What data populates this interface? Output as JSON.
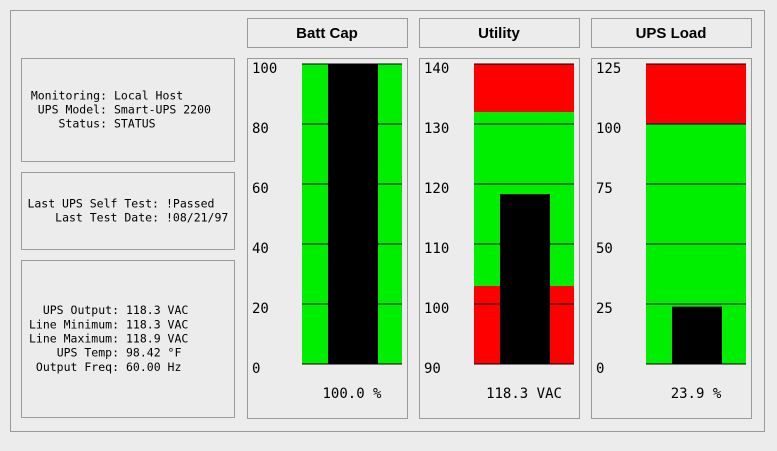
{
  "panels": [
    {
      "lines": [
        {
          "label": "Monitoring:",
          "value": "Local Host"
        },
        {
          "label": "UPS Model:",
          "value": "Smart-UPS 2200"
        },
        {
          "label": "Status:",
          "value": "STATUS"
        }
      ]
    },
    {
      "lines": [
        {
          "label": "Last UPS Self Test:",
          "value": "!Passed"
        },
        {
          "label": "Last Test Date:",
          "value": "!08/21/97"
        }
      ]
    },
    {
      "lines": [
        {
          "label": "UPS Output:",
          "value": "118.3 VAC"
        },
        {
          "label": "Line Minimum:",
          "value": "118.3 VAC"
        },
        {
          "label": "Line Maximum:",
          "value": "118.9 VAC"
        },
        {
          "label": "UPS Temp:",
          "value": "98.42 °F"
        },
        {
          "label": "Output Freq:",
          "value": "60.00 Hz"
        }
      ]
    }
  ],
  "chart_data": [
    {
      "type": "bar",
      "title": "Batt Cap",
      "values": [
        100.0
      ],
      "value_labels": [
        "100.0 %"
      ],
      "color": "#000000",
      "ylim": [
        0,
        100
      ],
      "yticks": [
        0,
        20,
        40,
        60,
        80,
        100
      ],
      "grid": true,
      "bands": [
        {
          "from": 0,
          "to": 100,
          "color": "#00ee00"
        }
      ]
    },
    {
      "type": "bar",
      "title": "Utility",
      "values": [
        118.3
      ],
      "value_labels": [
        "118.3 VAC"
      ],
      "color": "#000000",
      "ylim": [
        90,
        140
      ],
      "yticks": [
        90,
        100,
        110,
        120,
        130,
        140
      ],
      "grid": true,
      "bands": [
        {
          "from": 90,
          "to": 103,
          "color": "#ff0000"
        },
        {
          "from": 103,
          "to": 132,
          "color": "#00ee00"
        },
        {
          "from": 132,
          "to": 140,
          "color": "#ff0000"
        }
      ]
    },
    {
      "type": "bar",
      "title": "UPS Load",
      "values": [
        23.9
      ],
      "value_labels": [
        "23.9 %"
      ],
      "color": "#000000",
      "ylim": [
        0,
        125
      ],
      "yticks": [
        0,
        25,
        50,
        75,
        100,
        125
      ],
      "grid": true,
      "bands": [
        {
          "from": 0,
          "to": 100,
          "color": "#00ee00"
        },
        {
          "from": 100,
          "to": 125,
          "color": "#ff0000"
        }
      ]
    }
  ]
}
